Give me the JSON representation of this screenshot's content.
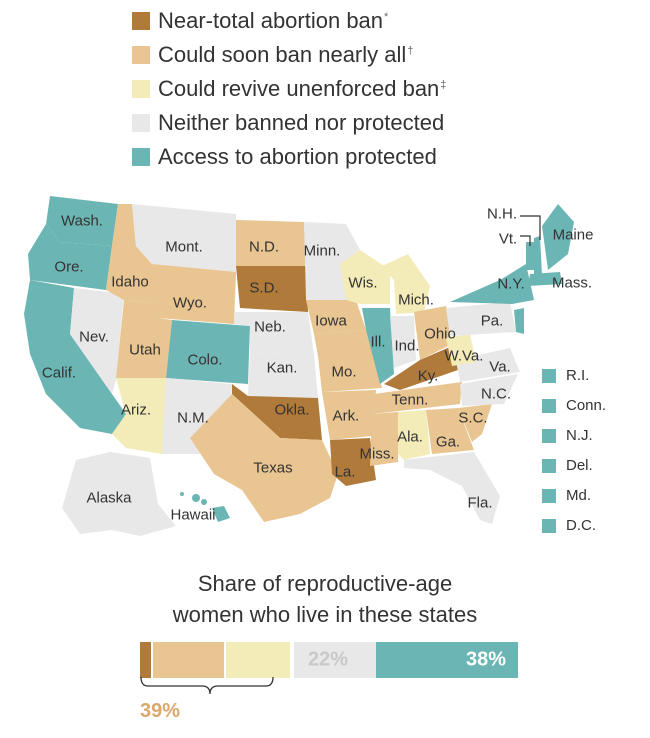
{
  "legend": {
    "items": [
      {
        "label": "Near-total abortion ban",
        "mark": "*",
        "color": "#b07a3a"
      },
      {
        "label": "Could soon ban nearly all",
        "mark": "†",
        "color": "#e9c591"
      },
      {
        "label": "Could revive unenforced ban",
        "mark": "‡",
        "color": "#f3ebb8"
      },
      {
        "label": "Neither banned nor protected",
        "mark": "",
        "color": "#e8e8e8"
      },
      {
        "label": "Access to abortion protected",
        "mark": "",
        "color": "#6bb6b4"
      }
    ]
  },
  "map": {
    "states": {
      "wash": "Wash.",
      "ore": "Ore.",
      "calif": "Calif.",
      "nev": "Nev.",
      "idaho": "Idaho",
      "mont": "Mont.",
      "wyo": "Wyo.",
      "utah": "Utah",
      "colo": "Colo.",
      "ariz": "Ariz.",
      "nm": "N.M.",
      "nd": "N.D.",
      "sd": "S.D.",
      "neb": "Neb.",
      "kan": "Kan.",
      "okla": "Okla.",
      "texas": "Texas",
      "minn": "Minn.",
      "iowa": "Iowa",
      "mo": "Mo.",
      "ark": "Ark.",
      "la": "La.",
      "wis": "Wis.",
      "ill": "Ill.",
      "mich": "Mich.",
      "ind": "Ind.",
      "ohio": "Ohio",
      "ky": "Ky.",
      "tenn": "Tenn.",
      "miss": "Miss.",
      "ala": "Ala.",
      "ga": "Ga.",
      "fla": "Fla.",
      "sc": "S.C.",
      "nc": "N.C.",
      "va": "Va.",
      "wva": "W.Va.",
      "pa": "Pa.",
      "ny": "N.Y.",
      "vt": "Vt.",
      "nh": "N.H.",
      "maine": "Maine",
      "mass": "Mass.",
      "alaska": "Alaska",
      "hawaii": "Hawaii"
    },
    "small_states": [
      "R.I.",
      "Conn.",
      "N.J.",
      "Del.",
      "Md.",
      "D.C."
    ]
  },
  "share": {
    "title_line1": "Share of reproductive-age",
    "title_line2": "women who live in these states",
    "bracket_label": "39%",
    "neither_label": "22%",
    "protected_label": "38%",
    "segments": [
      {
        "category": "Near-total abortion ban",
        "percent": 3
      },
      {
        "category": "Could soon ban nearly all",
        "percent": 19
      },
      {
        "category": "Could revive unenforced ban",
        "percent": 17
      },
      {
        "category": "Neither banned nor protected",
        "percent": 22
      },
      {
        "category": "Access to abortion protected",
        "percent": 38
      }
    ]
  }
}
